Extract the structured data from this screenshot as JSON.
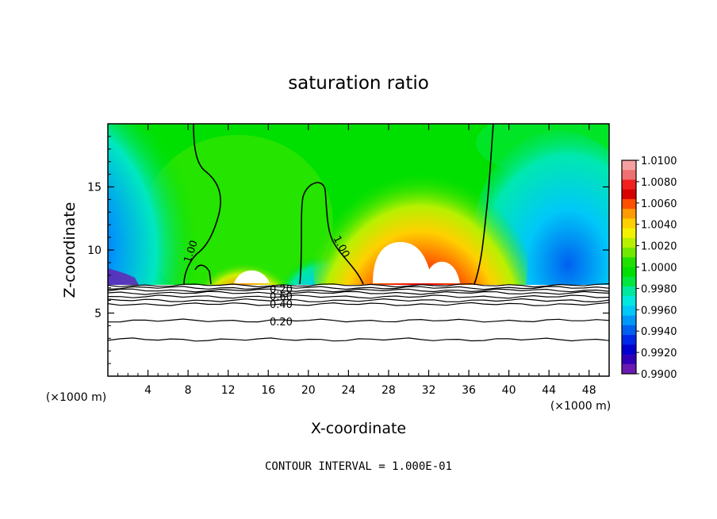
{
  "chart_data": {
    "type": "heatmap",
    "title": "saturation ratio",
    "xlabel": "X-coordinate",
    "ylabel": "Z-coordinate",
    "x_unit": "(×1000 m)",
    "y_unit": "(×1000 m)",
    "xlim": [
      0,
      50
    ],
    "ylim": [
      0,
      20
    ],
    "x_ticks": [
      4,
      8,
      12,
      16,
      20,
      24,
      28,
      32,
      36,
      40,
      44,
      48
    ],
    "y_ticks": [
      5,
      10,
      15
    ],
    "colorbar": {
      "ticks": [
        "1.0100",
        "1.0080",
        "1.0060",
        "1.0040",
        "1.0020",
        "1.0000",
        "0.9980",
        "0.9960",
        "0.9940",
        "0.9920",
        "0.9900"
      ],
      "colors": [
        "#f5a0a0",
        "#ef7070",
        "#f02020",
        "#d80000",
        "#ff5000",
        "#ff9a00",
        "#ffd000",
        "#f2f200",
        "#b8f000",
        "#70e800",
        "#20e000",
        "#00e000",
        "#00e840",
        "#00e8a0",
        "#00e8e0",
        "#00c8f8",
        "#0098f8",
        "#0060f0",
        "#0028e8",
        "#0000d0",
        "#3000b8",
        "#6a1ab0"
      ]
    },
    "field_regions": [
      {
        "x": [
          0,
          50
        ],
        "z": [
          7.2,
          20
        ],
        "value": 1.0,
        "desc": "background near saturation"
      },
      {
        "x": [
          0,
          8
        ],
        "z": [
          7.2,
          17
        ],
        "value": 0.992,
        "desc": "left dry region"
      },
      {
        "x": [
          39,
          50
        ],
        "z": [
          7.2,
          16
        ],
        "value": 0.994,
        "desc": "right dry region"
      },
      {
        "x": [
          12,
          17
        ],
        "z": [
          7.2,
          9.5
        ],
        "value": 1.007,
        "desc": "small supersaturated cell"
      },
      {
        "x": [
          25,
          37
        ],
        "z": [
          7.2,
          16
        ],
        "value": 1.009,
        "desc": "large supersaturated cell"
      }
    ],
    "contour_labels": [
      "1.00",
      "1.00",
      "0.20",
      "0.60",
      "0.40",
      "0.20"
    ],
    "contour_lines_below": [
      7.2,
      7.0,
      6.8,
      6.6,
      6.3,
      6.0,
      5.7,
      4.4,
      2.9
    ],
    "footer": "CONTOUR INTERVAL = 1.000E-01"
  }
}
